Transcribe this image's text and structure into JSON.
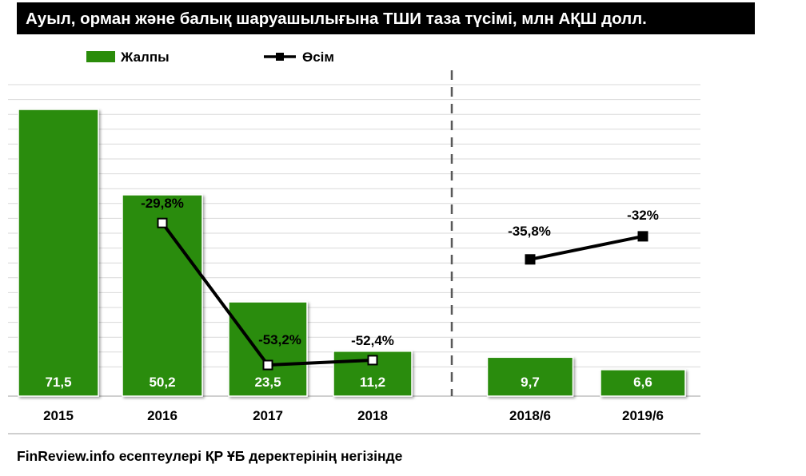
{
  "title": "Ауыл, орман және балық шаруашылығына ТШИ таза түсімі, млн АҚШ долл.",
  "source": "FinReview.info есептеулері ҚР ҰБ деректерінің негізінде",
  "colors": {
    "bar": "#2a8c0a",
    "line": "#000000",
    "grid": "#d9d9d9",
    "divider": "#595959"
  },
  "chart_data": {
    "type": "bar",
    "categories": [
      "2015",
      "2016",
      "2017",
      "2018",
      "2018/6",
      "2019/6"
    ],
    "series": [
      {
        "name": "Жалпы",
        "type": "bar",
        "values": [
          71.5,
          50.2,
          23.5,
          11.2,
          9.7,
          6.6
        ],
        "labels": [
          "71,5",
          "50,2",
          "23,5",
          "11,2",
          "9,7",
          "6,6"
        ]
      },
      {
        "name": "Өсім",
        "type": "line",
        "values": [
          null,
          -29.8,
          -53.2,
          -52.4,
          -35.8,
          -32.0
        ],
        "labels": [
          "",
          "-29,8%",
          "-53,2%",
          "-52,4%",
          "-35,8%",
          "-32%"
        ]
      }
    ],
    "legend_position": "top-left",
    "grid": true,
    "divider_between": [
      "2018",
      "2018/6"
    ]
  }
}
